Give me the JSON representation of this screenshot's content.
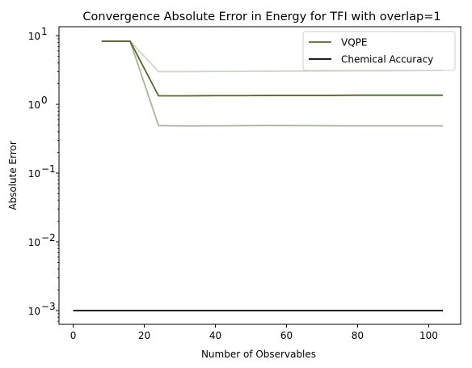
{
  "chart_data": {
    "type": "line",
    "title": "Convergence Absolute Error in Energy for TFI with overlap=1",
    "xlabel": "Number of Observables",
    "ylabel": "Absolute Error",
    "xlim": [
      -4,
      109
    ],
    "ylim_log10": [
      -3.2,
      1.13
    ],
    "y_scale": "log",
    "grid": false,
    "legend_placement": "top-right",
    "x_ticks": [
      0,
      20,
      40,
      60,
      80,
      100
    ],
    "x_tick_labels": [
      "0",
      "20",
      "40",
      "60",
      "80",
      "100"
    ],
    "y_ticks": [
      0.001,
      0.01,
      0.1,
      1,
      10
    ],
    "y_tick_labels": [
      "10",
      "10",
      "10",
      "10",
      "10"
    ],
    "y_tick_exponents": [
      "−3",
      "−2",
      "−1",
      "0",
      "1"
    ],
    "series": [
      {
        "name": "VQPE",
        "color": "#4f6a2c",
        "opacity": 1.0,
        "x": [
          8,
          16,
          24,
          32,
          40,
          48,
          56,
          64,
          72,
          80,
          88,
          96,
          104
        ],
        "y": [
          8.3,
          8.3,
          1.33,
          1.33,
          1.34,
          1.34,
          1.35,
          1.35,
          1.35,
          1.36,
          1.36,
          1.36,
          1.36
        ]
      },
      {
        "color": "#4f6a2c",
        "opacity": 0.5,
        "x": [
          8,
          16,
          24,
          32,
          40,
          48,
          56,
          64,
          72,
          80,
          88,
          96,
          104
        ],
        "y": [
          8.3,
          8.3,
          0.49,
          0.485,
          0.487,
          0.49,
          0.492,
          0.49,
          0.488,
          0.487,
          0.487,
          0.487,
          0.487
        ]
      },
      {
        "color": "#4f6a2c",
        "opacity": 0.28,
        "x": [
          8,
          16,
          24,
          32,
          40,
          48,
          56,
          64,
          72,
          80,
          88,
          96,
          104
        ],
        "y": [
          8.3,
          8.3,
          3.0,
          3.0,
          3.02,
          3.03,
          3.04,
          3.05,
          3.06,
          3.07,
          3.08,
          3.1,
          3.12
        ]
      },
      {
        "name": "Chemical Accuracy",
        "color": "#000000",
        "opacity": 1.0,
        "x": [
          0,
          104
        ],
        "y": [
          0.001,
          0.001
        ]
      }
    ],
    "legend": [
      {
        "label": "VQPE",
        "color": "#4f6a2c"
      },
      {
        "label": "Chemical Accuracy",
        "color": "#000000"
      }
    ]
  }
}
